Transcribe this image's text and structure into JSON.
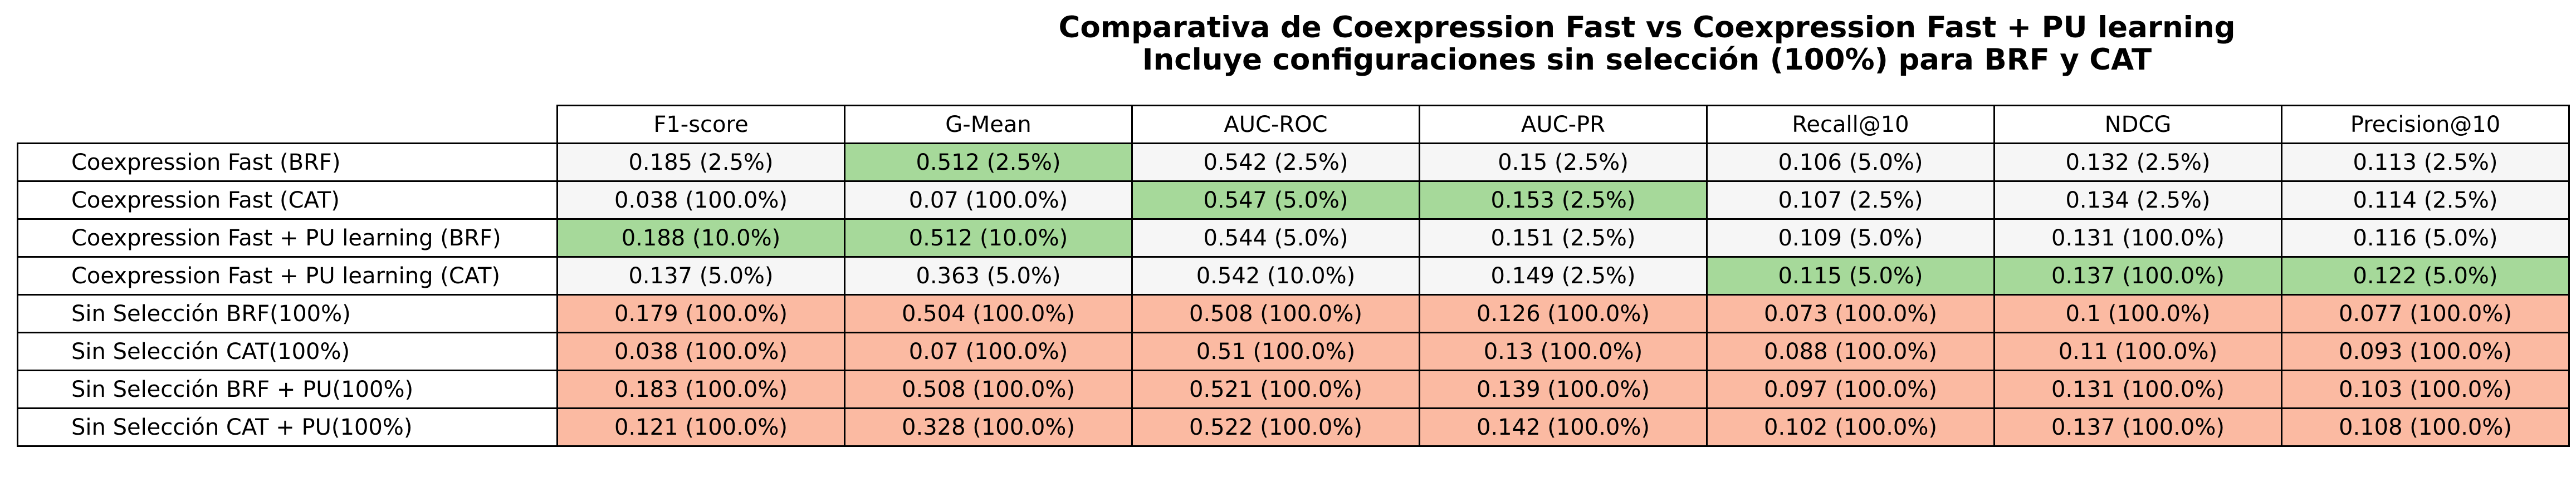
{
  "title": "Comparativa de Coexpression Fast vs Coexpression Fast + PU learning",
  "subtitle": "Incluye configuraciones sin selección (100%) para BRF y CAT",
  "colors": {
    "best": "#a6d99a",
    "neutral": "#f6f6f6",
    "baseline": "#fbbaa2"
  },
  "chart_data": {
    "type": "table",
    "title": "Comparativa de Coexpression Fast vs Coexpression Fast + PU learning",
    "subtitle": "Incluye configuraciones sin selección (100%) para BRF y CAT",
    "columns": [
      "F1-score",
      "G-Mean",
      "AUC-ROC",
      "AUC-PR",
      "Recall@10",
      "NDCG",
      "Precision@10"
    ],
    "rows": [
      {
        "label": "Coexpression Fast (BRF)",
        "cells": [
          {
            "text": "0.185 (2.5%)",
            "style": "neutral"
          },
          {
            "text": "0.512 (2.5%)",
            "style": "best"
          },
          {
            "text": "0.542 (2.5%)",
            "style": "neutral"
          },
          {
            "text": "0.15 (2.5%)",
            "style": "neutral"
          },
          {
            "text": "0.106 (5.0%)",
            "style": "neutral"
          },
          {
            "text": "0.132 (2.5%)",
            "style": "neutral"
          },
          {
            "text": "0.113 (2.5%)",
            "style": "neutral"
          }
        ]
      },
      {
        "label": "Coexpression Fast (CAT)",
        "cells": [
          {
            "text": "0.038 (100.0%)",
            "style": "neutral"
          },
          {
            "text": "0.07 (100.0%)",
            "style": "neutral"
          },
          {
            "text": "0.547 (5.0%)",
            "style": "best"
          },
          {
            "text": "0.153 (2.5%)",
            "style": "best"
          },
          {
            "text": "0.107 (2.5%)",
            "style": "neutral"
          },
          {
            "text": "0.134 (2.5%)",
            "style": "neutral"
          },
          {
            "text": "0.114 (2.5%)",
            "style": "neutral"
          }
        ]
      },
      {
        "label": "Coexpression Fast + PU learning (BRF)",
        "cells": [
          {
            "text": "0.188 (10.0%)",
            "style": "best"
          },
          {
            "text": "0.512 (10.0%)",
            "style": "best"
          },
          {
            "text": "0.544 (5.0%)",
            "style": "neutral"
          },
          {
            "text": "0.151 (2.5%)",
            "style": "neutral"
          },
          {
            "text": "0.109 (5.0%)",
            "style": "neutral"
          },
          {
            "text": "0.131 (100.0%)",
            "style": "neutral"
          },
          {
            "text": "0.116 (5.0%)",
            "style": "neutral"
          }
        ]
      },
      {
        "label": "Coexpression Fast + PU learning (CAT)",
        "cells": [
          {
            "text": "0.137 (5.0%)",
            "style": "neutral"
          },
          {
            "text": "0.363 (5.0%)",
            "style": "neutral"
          },
          {
            "text": "0.542 (10.0%)",
            "style": "neutral"
          },
          {
            "text": "0.149 (2.5%)",
            "style": "neutral"
          },
          {
            "text": "0.115 (5.0%)",
            "style": "best"
          },
          {
            "text": "0.137 (100.0%)",
            "style": "best"
          },
          {
            "text": "0.122 (5.0%)",
            "style": "best"
          }
        ]
      },
      {
        "label": "Sin Selección BRF(100%)",
        "cells": [
          {
            "text": "0.179 (100.0%)",
            "style": "baseline"
          },
          {
            "text": "0.504 (100.0%)",
            "style": "baseline"
          },
          {
            "text": "0.508 (100.0%)",
            "style": "baseline"
          },
          {
            "text": "0.126 (100.0%)",
            "style": "baseline"
          },
          {
            "text": "0.073 (100.0%)",
            "style": "baseline"
          },
          {
            "text": "0.1 (100.0%)",
            "style": "baseline"
          },
          {
            "text": "0.077 (100.0%)",
            "style": "baseline"
          }
        ]
      },
      {
        "label": "Sin Selección CAT(100%)",
        "cells": [
          {
            "text": "0.038 (100.0%)",
            "style": "baseline"
          },
          {
            "text": "0.07 (100.0%)",
            "style": "baseline"
          },
          {
            "text": "0.51 (100.0%)",
            "style": "baseline"
          },
          {
            "text": "0.13 (100.0%)",
            "style": "baseline"
          },
          {
            "text": "0.088 (100.0%)",
            "style": "baseline"
          },
          {
            "text": "0.11 (100.0%)",
            "style": "baseline"
          },
          {
            "text": "0.093 (100.0%)",
            "style": "baseline"
          }
        ]
      },
      {
        "label": "Sin Selección BRF + PU(100%)",
        "cells": [
          {
            "text": "0.183 (100.0%)",
            "style": "baseline"
          },
          {
            "text": "0.508 (100.0%)",
            "style": "baseline"
          },
          {
            "text": "0.521 (100.0%)",
            "style": "baseline"
          },
          {
            "text": "0.139 (100.0%)",
            "style": "baseline"
          },
          {
            "text": "0.097 (100.0%)",
            "style": "baseline"
          },
          {
            "text": "0.131 (100.0%)",
            "style": "baseline"
          },
          {
            "text": "0.103 (100.0%)",
            "style": "baseline"
          }
        ]
      },
      {
        "label": "Sin Selección CAT + PU(100%)",
        "cells": [
          {
            "text": "0.121 (100.0%)",
            "style": "baseline"
          },
          {
            "text": "0.328 (100.0%)",
            "style": "baseline"
          },
          {
            "text": "0.522 (100.0%)",
            "style": "baseline"
          },
          {
            "text": "0.142 (100.0%)",
            "style": "baseline"
          },
          {
            "text": "0.102 (100.0%)",
            "style": "baseline"
          },
          {
            "text": "0.137 (100.0%)",
            "style": "baseline"
          },
          {
            "text": "0.108 (100.0%)",
            "style": "baseline"
          }
        ]
      }
    ]
  }
}
